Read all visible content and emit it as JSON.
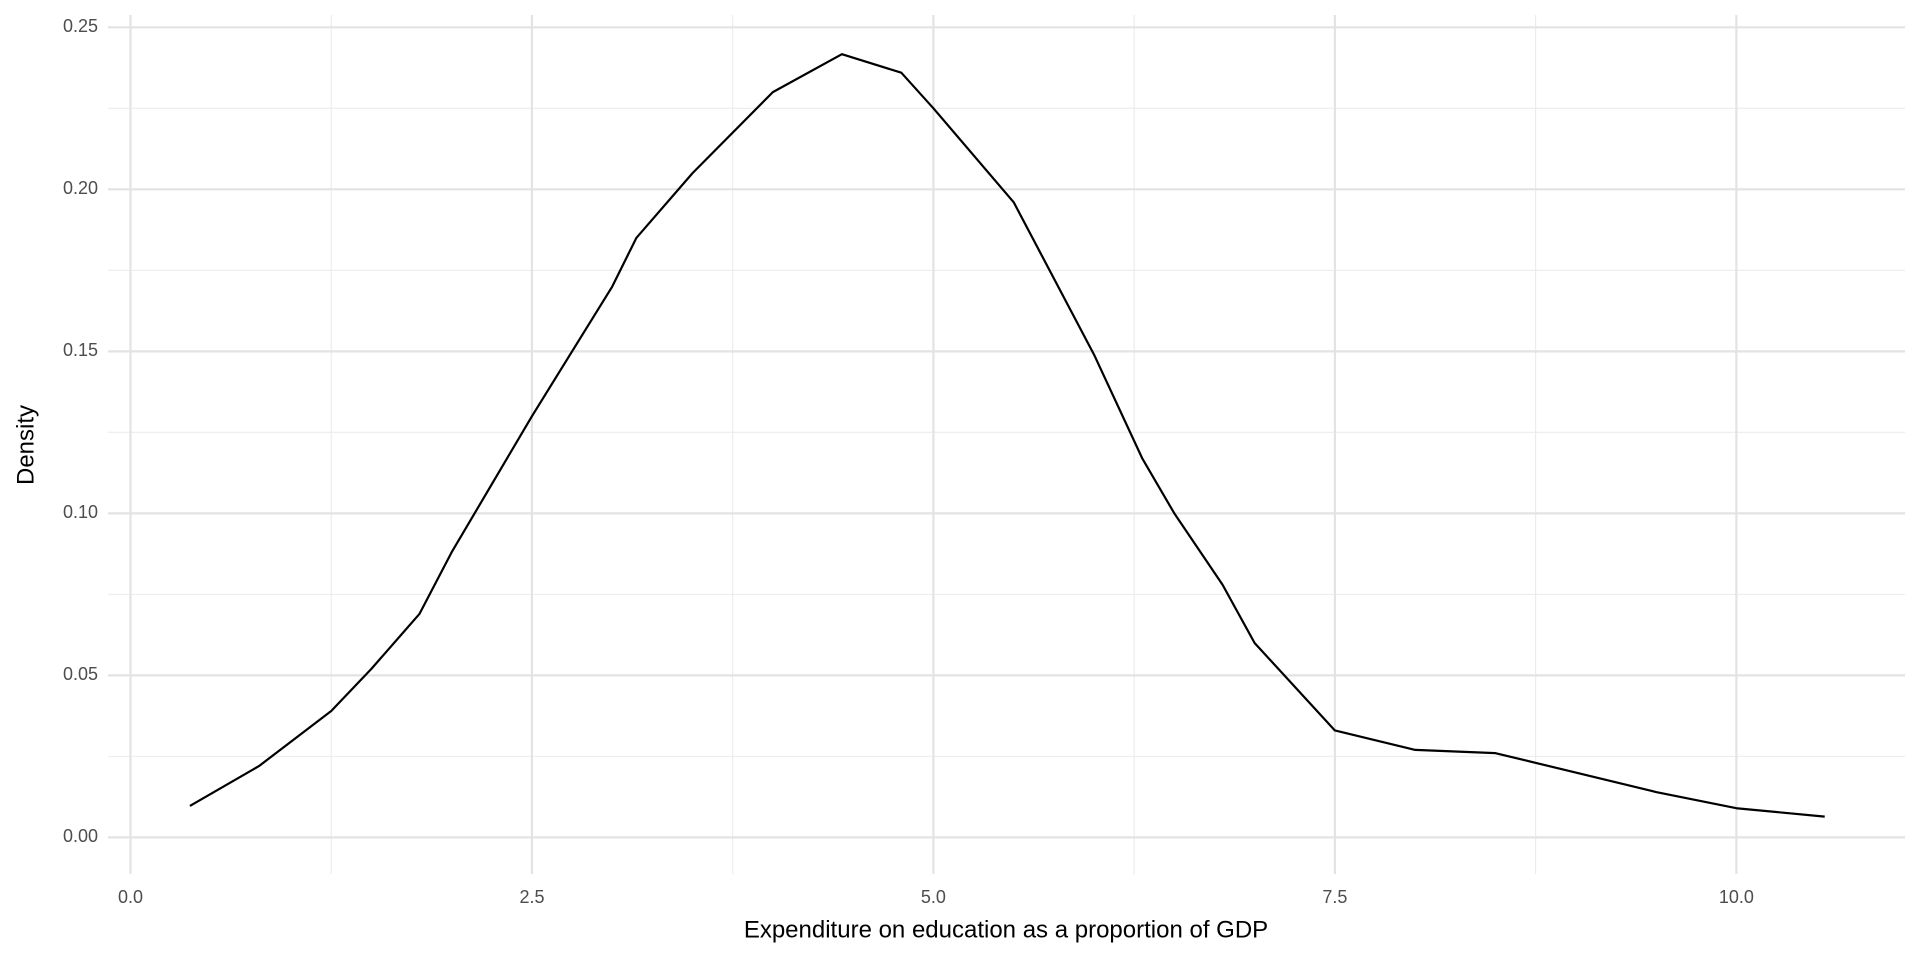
{
  "chart_data": {
    "type": "line",
    "x_label": "Expenditure on education as a proportion of GDP",
    "y_label": "Density",
    "x": [
      0.37,
      0.8,
      1.25,
      1.5,
      1.8,
      2.0,
      2.5,
      3.0,
      3.15,
      3.5,
      4.0,
      4.43,
      4.8,
      5.0,
      5.5,
      6.0,
      6.3,
      6.5,
      6.8,
      7.0,
      7.5,
      8.0,
      8.5,
      9.0,
      9.5,
      10.0,
      10.55
    ],
    "values": [
      0.0097,
      0.022,
      0.039,
      0.052,
      0.069,
      0.088,
      0.13,
      0.17,
      0.185,
      0.205,
      0.23,
      0.2417,
      0.236,
      0.225,
      0.196,
      0.149,
      0.117,
      0.1,
      0.078,
      0.06,
      0.033,
      0.027,
      0.026,
      0.02,
      0.014,
      0.009,
      0.0064
    ],
    "color": "#000000",
    "xlim": [
      -0.14,
      11.05
    ],
    "ylim": [
      -0.0113,
      0.2538
    ],
    "xticks": [
      {
        "value": 0,
        "label": "0.0"
      },
      {
        "value": 2.5,
        "label": "2.5"
      },
      {
        "value": 5,
        "label": "5.0"
      },
      {
        "value": 7.5,
        "label": "7.5"
      },
      {
        "value": 10,
        "label": "10.0"
      }
    ],
    "yticks": [
      {
        "value": 0,
        "label": "0.00"
      },
      {
        "value": 0.05,
        "label": "0.05"
      },
      {
        "value": 0.1,
        "label": "0.10"
      },
      {
        "value": 0.15,
        "label": "0.15"
      },
      {
        "value": 0.2,
        "label": "0.20"
      },
      {
        "value": 0.25,
        "label": "0.25"
      }
    ],
    "grid": true,
    "minor_grid": true
  }
}
